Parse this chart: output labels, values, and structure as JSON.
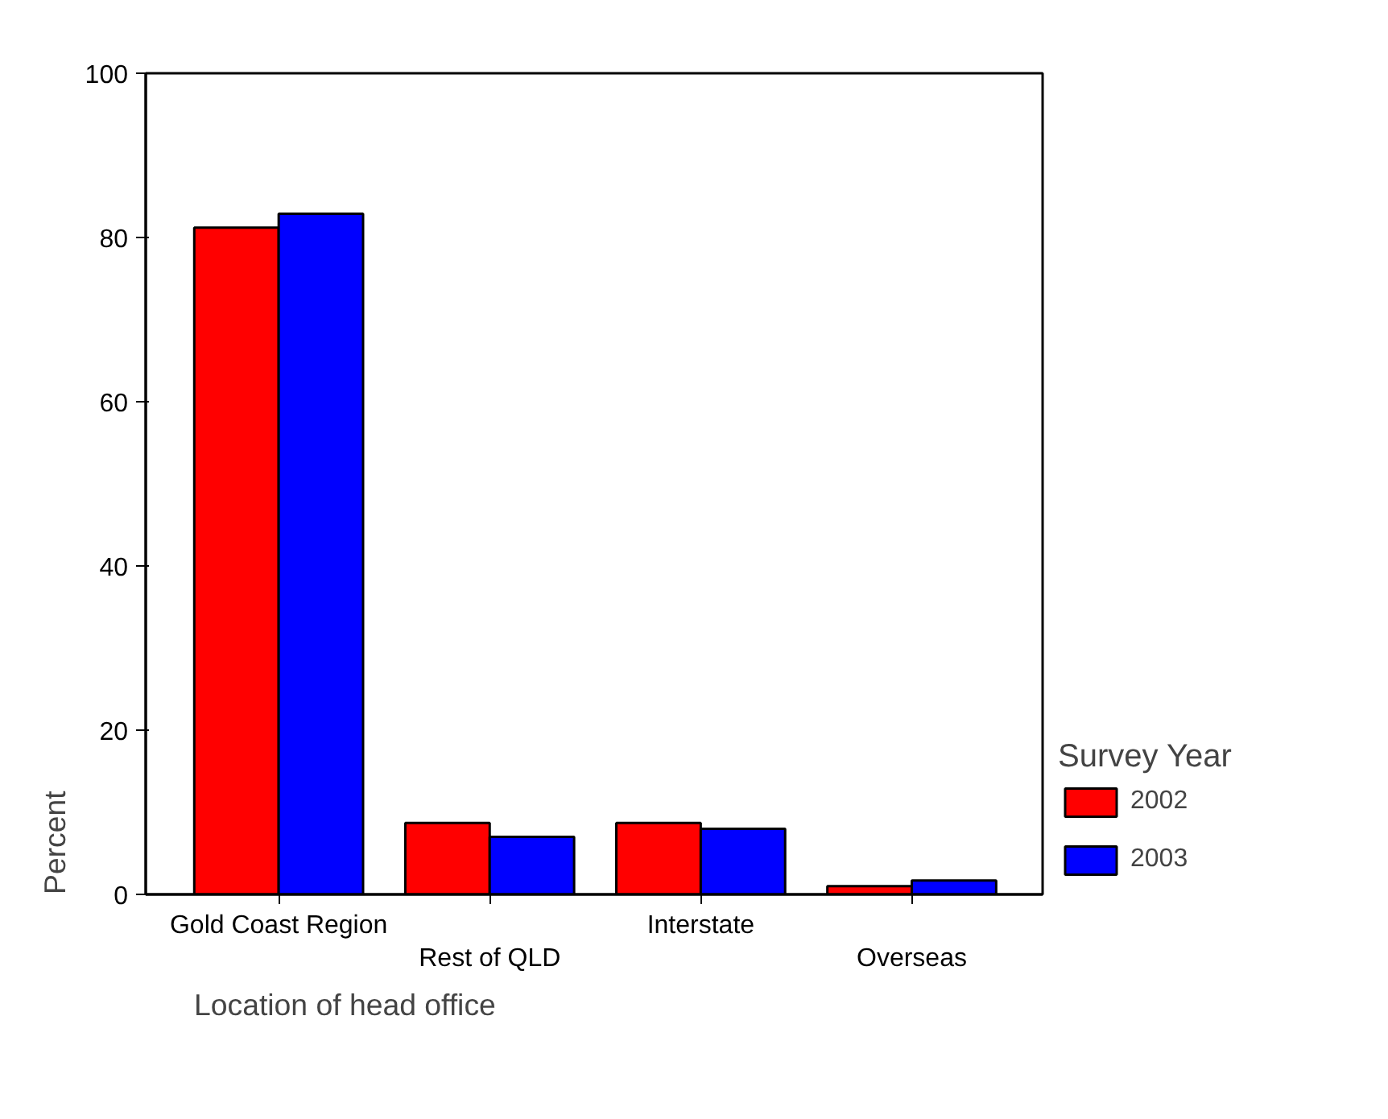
{
  "chart_data": {
    "type": "bar",
    "xlabel": "Location of head office",
    "ylabel": "Percent",
    "legend_title": "Survey Year",
    "categories": [
      "Gold Coast Region",
      "Rest of QLD",
      "Interstate",
      "Overseas"
    ],
    "series": [
      {
        "name": "2002",
        "color": "#ff0000",
        "values": [
          81.2,
          8.7,
          8.7,
          1.0
        ]
      },
      {
        "name": "2003",
        "color": "#0000ff",
        "values": [
          82.9,
          7.0,
          8.0,
          1.7
        ]
      }
    ],
    "ylim": [
      0,
      100
    ],
    "yticks": [
      0,
      20,
      40,
      60,
      80,
      100
    ],
    "grid": false,
    "legend": "right"
  }
}
